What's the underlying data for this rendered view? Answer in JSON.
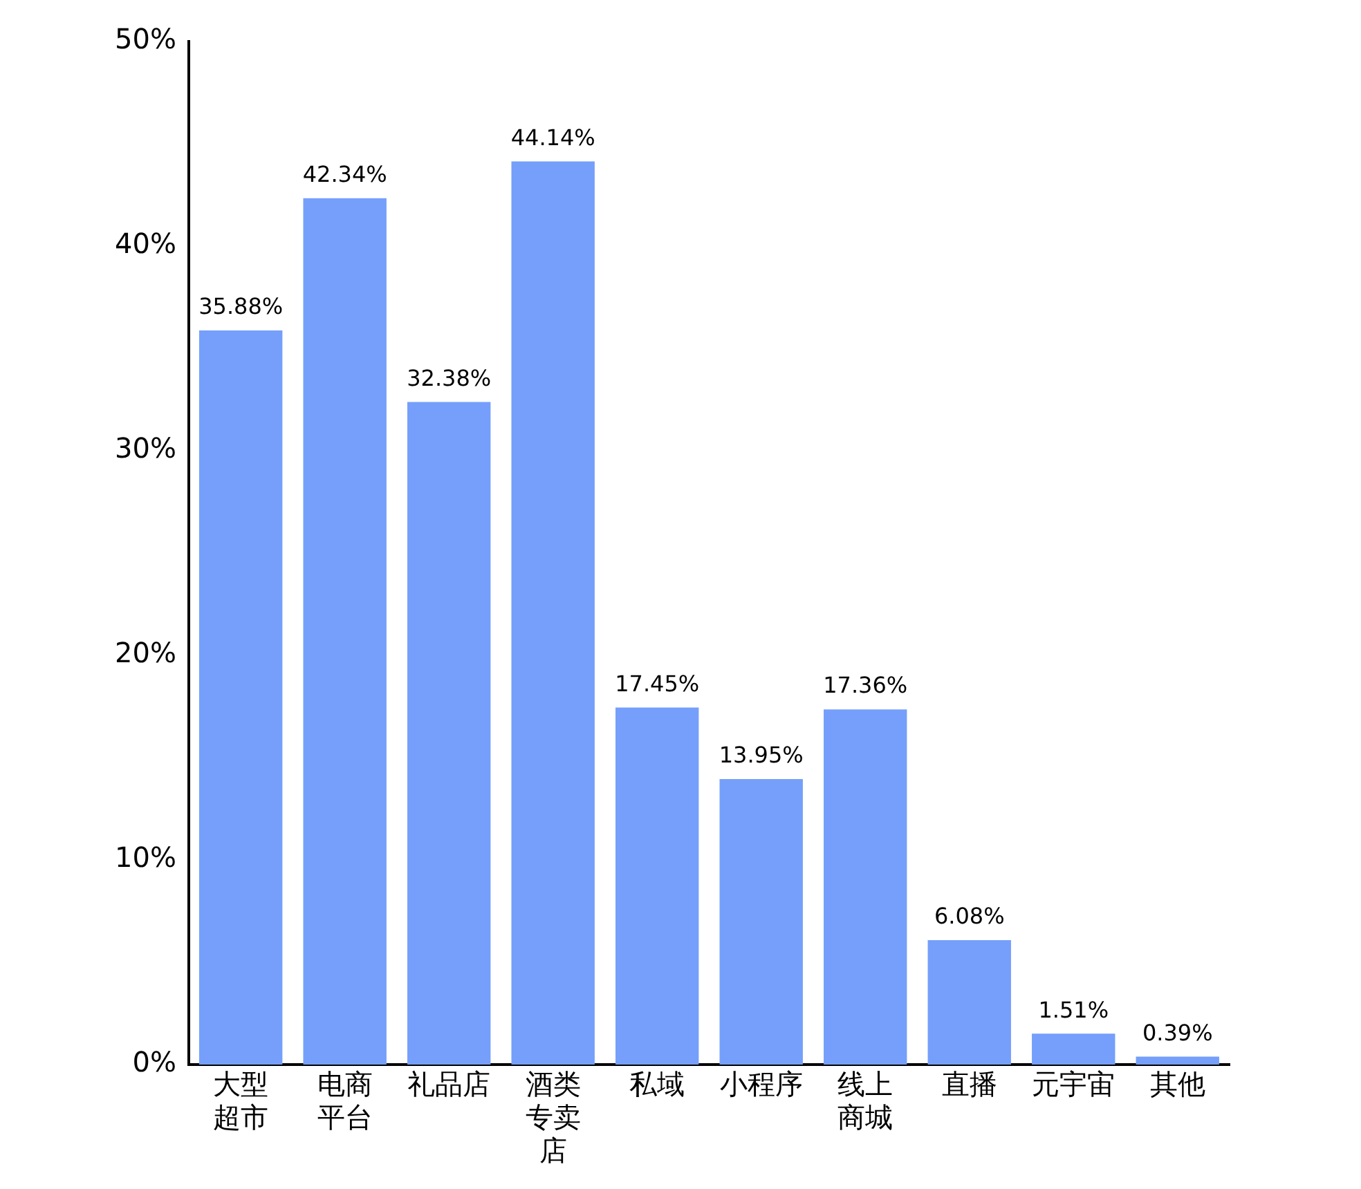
{
  "chart_data": {
    "type": "bar",
    "categories": [
      "大型超市",
      "电商平台",
      "礼品店",
      "酒类专卖店",
      "私域",
      "小程序",
      "线上商城",
      "直播",
      "元宇宙",
      "其他"
    ],
    "values": [
      35.88,
      42.34,
      32.38,
      44.14,
      17.45,
      13.95,
      17.36,
      6.08,
      1.51,
      0.39
    ],
    "value_labels": [
      "35.88%",
      "42.34%",
      "32.38%",
      "44.14%",
      "17.45%",
      "13.95%",
      "17.36%",
      "6.08%",
      "1.51%",
      "0.39%"
    ],
    "color": "#759ffa",
    "ylim": [
      0,
      50
    ],
    "yticks": [
      {
        "value": 0,
        "label": "0%"
      },
      {
        "value": 10,
        "label": "10%"
      },
      {
        "value": 20,
        "label": "20%"
      },
      {
        "value": 30,
        "label": "30%"
      },
      {
        "value": 40,
        "label": "40%"
      },
      {
        "value": 50,
        "label": "50%"
      }
    ],
    "grid": false,
    "legend": false
  }
}
